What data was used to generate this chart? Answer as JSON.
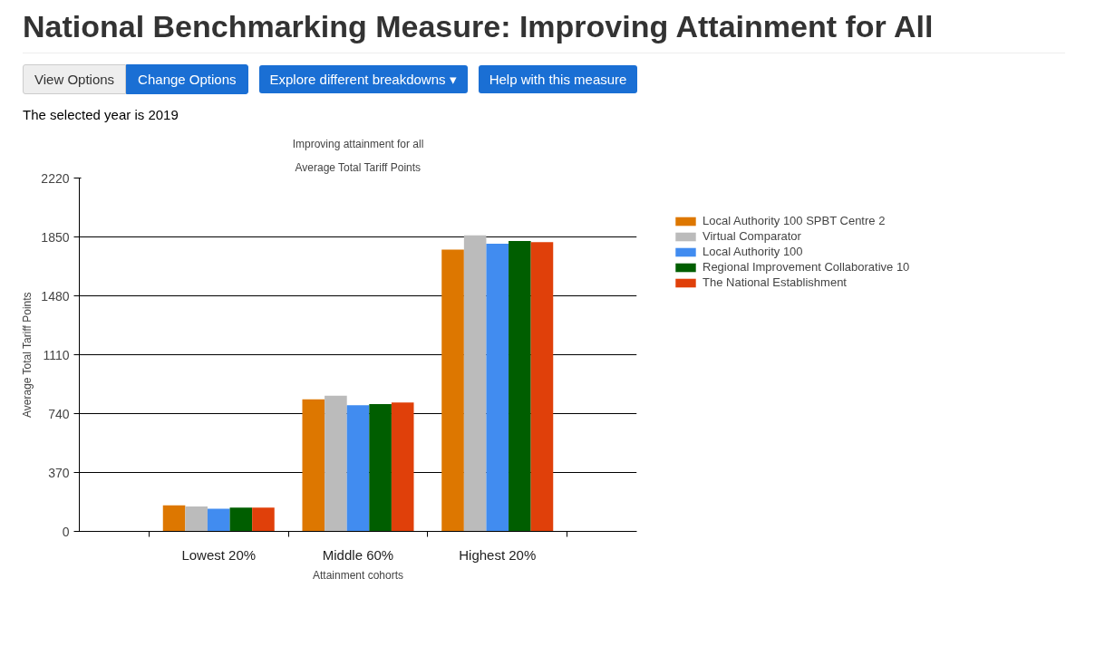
{
  "chart_data": {
    "type": "bar",
    "title": "National Benchmarking Measure: Improving Attainment for All",
    "subtitle": "Improving attainment for all",
    "annotations": [
      "View Options",
      "Change Options",
      "Explore different breakdowns ▾",
      "Help with this measure",
      "The selected year is 2019",
      "Average Total Tariff Points"
    ],
    "xlabel": "Attainment cohorts",
    "ylabel": "Average Total Tariff Points",
    "categories": [
      "Lowest 20%",
      "Middle 60%",
      "Highest 20%"
    ],
    "series": [
      {
        "name": "Local Authority 100 SPBT Centre 2",
        "color": "#dd7700",
        "values": [
          163,
          829,
          1771
        ]
      },
      {
        "name": "Virtual Comparator",
        "color": "#bbbbbb",
        "values": [
          156,
          853,
          1860
        ]
      },
      {
        "name": "Local Authority 100",
        "color": "#418cf0",
        "values": [
          142,
          793,
          1807
        ]
      },
      {
        "name": "Regional Improvement Collaborative 10",
        "color": "#005e00",
        "values": [
          149,
          800,
          1824
        ]
      },
      {
        "name": "The National Establishment",
        "color": "#e0400a",
        "values": [
          149,
          810,
          1817
        ]
      }
    ],
    "ylim": [
      0,
      2220
    ],
    "yticks": [
      0,
      370,
      740,
      1110,
      1480,
      1850,
      2220
    ],
    "grid": "y",
    "legend": "right"
  }
}
